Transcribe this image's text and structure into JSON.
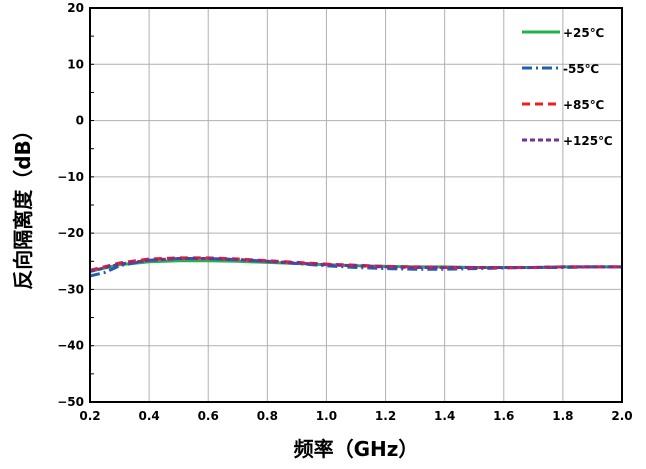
{
  "chart_data": {
    "type": "line",
    "xlabel": "频率（GHz）",
    "ylabel": "反向隔离度（dB）",
    "xlim": [
      0.2,
      2.0
    ],
    "ylim": [
      -50,
      20
    ],
    "x_ticks": [
      0.2,
      0.4,
      0.6,
      0.8,
      1.0,
      1.2,
      1.4,
      1.6,
      1.8,
      2.0
    ],
    "x_tick_labels": [
      "0.2",
      "0.4",
      "0.6",
      "0.8",
      "1.0",
      "1.2",
      "1.4",
      "1.6",
      "1.8",
      "2.0"
    ],
    "y_ticks": [
      20,
      10,
      0,
      -10,
      -20,
      -30,
      -40,
      -50
    ],
    "y_tick_labels": [
      "20",
      "10",
      "0",
      "−10",
      "−20",
      "−30",
      "−40",
      "−50"
    ],
    "grid": true,
    "legend_position": "top-right",
    "series": [
      {
        "name": "+25℃",
        "color": "#22b14c",
        "dash": "solid",
        "x": [
          0.2,
          0.3,
          0.4,
          0.5,
          0.6,
          0.7,
          0.8,
          0.9,
          1.0,
          1.1,
          1.2,
          1.3,
          1.4,
          1.5,
          1.6,
          1.7,
          1.8,
          1.9,
          2.0
        ],
        "y": [
          -26.8,
          -25.6,
          -25.1,
          -24.9,
          -24.9,
          -25.0,
          -25.2,
          -25.4,
          -25.6,
          -25.8,
          -25.9,
          -26.0,
          -26.0,
          -26.1,
          -26.1,
          -26.1,
          -26.0,
          -26.0,
          -26.0
        ]
      },
      {
        "name": "-55℃",
        "color": "#1f5fad",
        "dash": "dashdot",
        "x": [
          0.2,
          0.25,
          0.3,
          0.4,
          0.5,
          0.6,
          0.7,
          0.8,
          0.9,
          1.0,
          1.1,
          1.2,
          1.3,
          1.4,
          1.5,
          1.6,
          1.7,
          1.8,
          1.9,
          2.0
        ],
        "y": [
          -27.6,
          -27.0,
          -25.8,
          -24.8,
          -24.5,
          -24.5,
          -24.7,
          -25.0,
          -25.4,
          -25.8,
          -26.1,
          -26.3,
          -26.4,
          -26.4,
          -26.3,
          -26.2,
          -26.1,
          -26.1,
          -26.0,
          -26.0
        ]
      },
      {
        "name": "+85℃",
        "color": "#ee1c24",
        "dash": "dashed",
        "x": [
          0.2,
          0.3,
          0.4,
          0.5,
          0.6,
          0.7,
          0.8,
          0.9,
          1.0,
          1.1,
          1.2,
          1.3,
          1.4,
          1.5,
          1.6,
          1.7,
          1.8,
          1.9,
          2.0
        ],
        "y": [
          -26.6,
          -25.3,
          -24.6,
          -24.4,
          -24.4,
          -24.6,
          -24.9,
          -25.2,
          -25.5,
          -25.7,
          -25.9,
          -26.0,
          -26.1,
          -26.1,
          -26.1,
          -26.1,
          -26.0,
          -26.0,
          -26.0
        ]
      },
      {
        "name": "+125℃",
        "color": "#7030a0",
        "dash": "dotted",
        "x": [
          0.2,
          0.3,
          0.4,
          0.5,
          0.6,
          0.7,
          0.8,
          0.9,
          1.0,
          1.1,
          1.2,
          1.3,
          1.4,
          1.5,
          1.6,
          1.7,
          1.8,
          1.9,
          2.0
        ],
        "y": [
          -26.8,
          -25.5,
          -24.8,
          -24.5,
          -24.5,
          -24.7,
          -25.0,
          -25.3,
          -25.6,
          -25.8,
          -26.0,
          -26.1,
          -26.1,
          -26.1,
          -26.1,
          -26.1,
          -26.0,
          -26.0,
          -26.0
        ]
      }
    ]
  }
}
